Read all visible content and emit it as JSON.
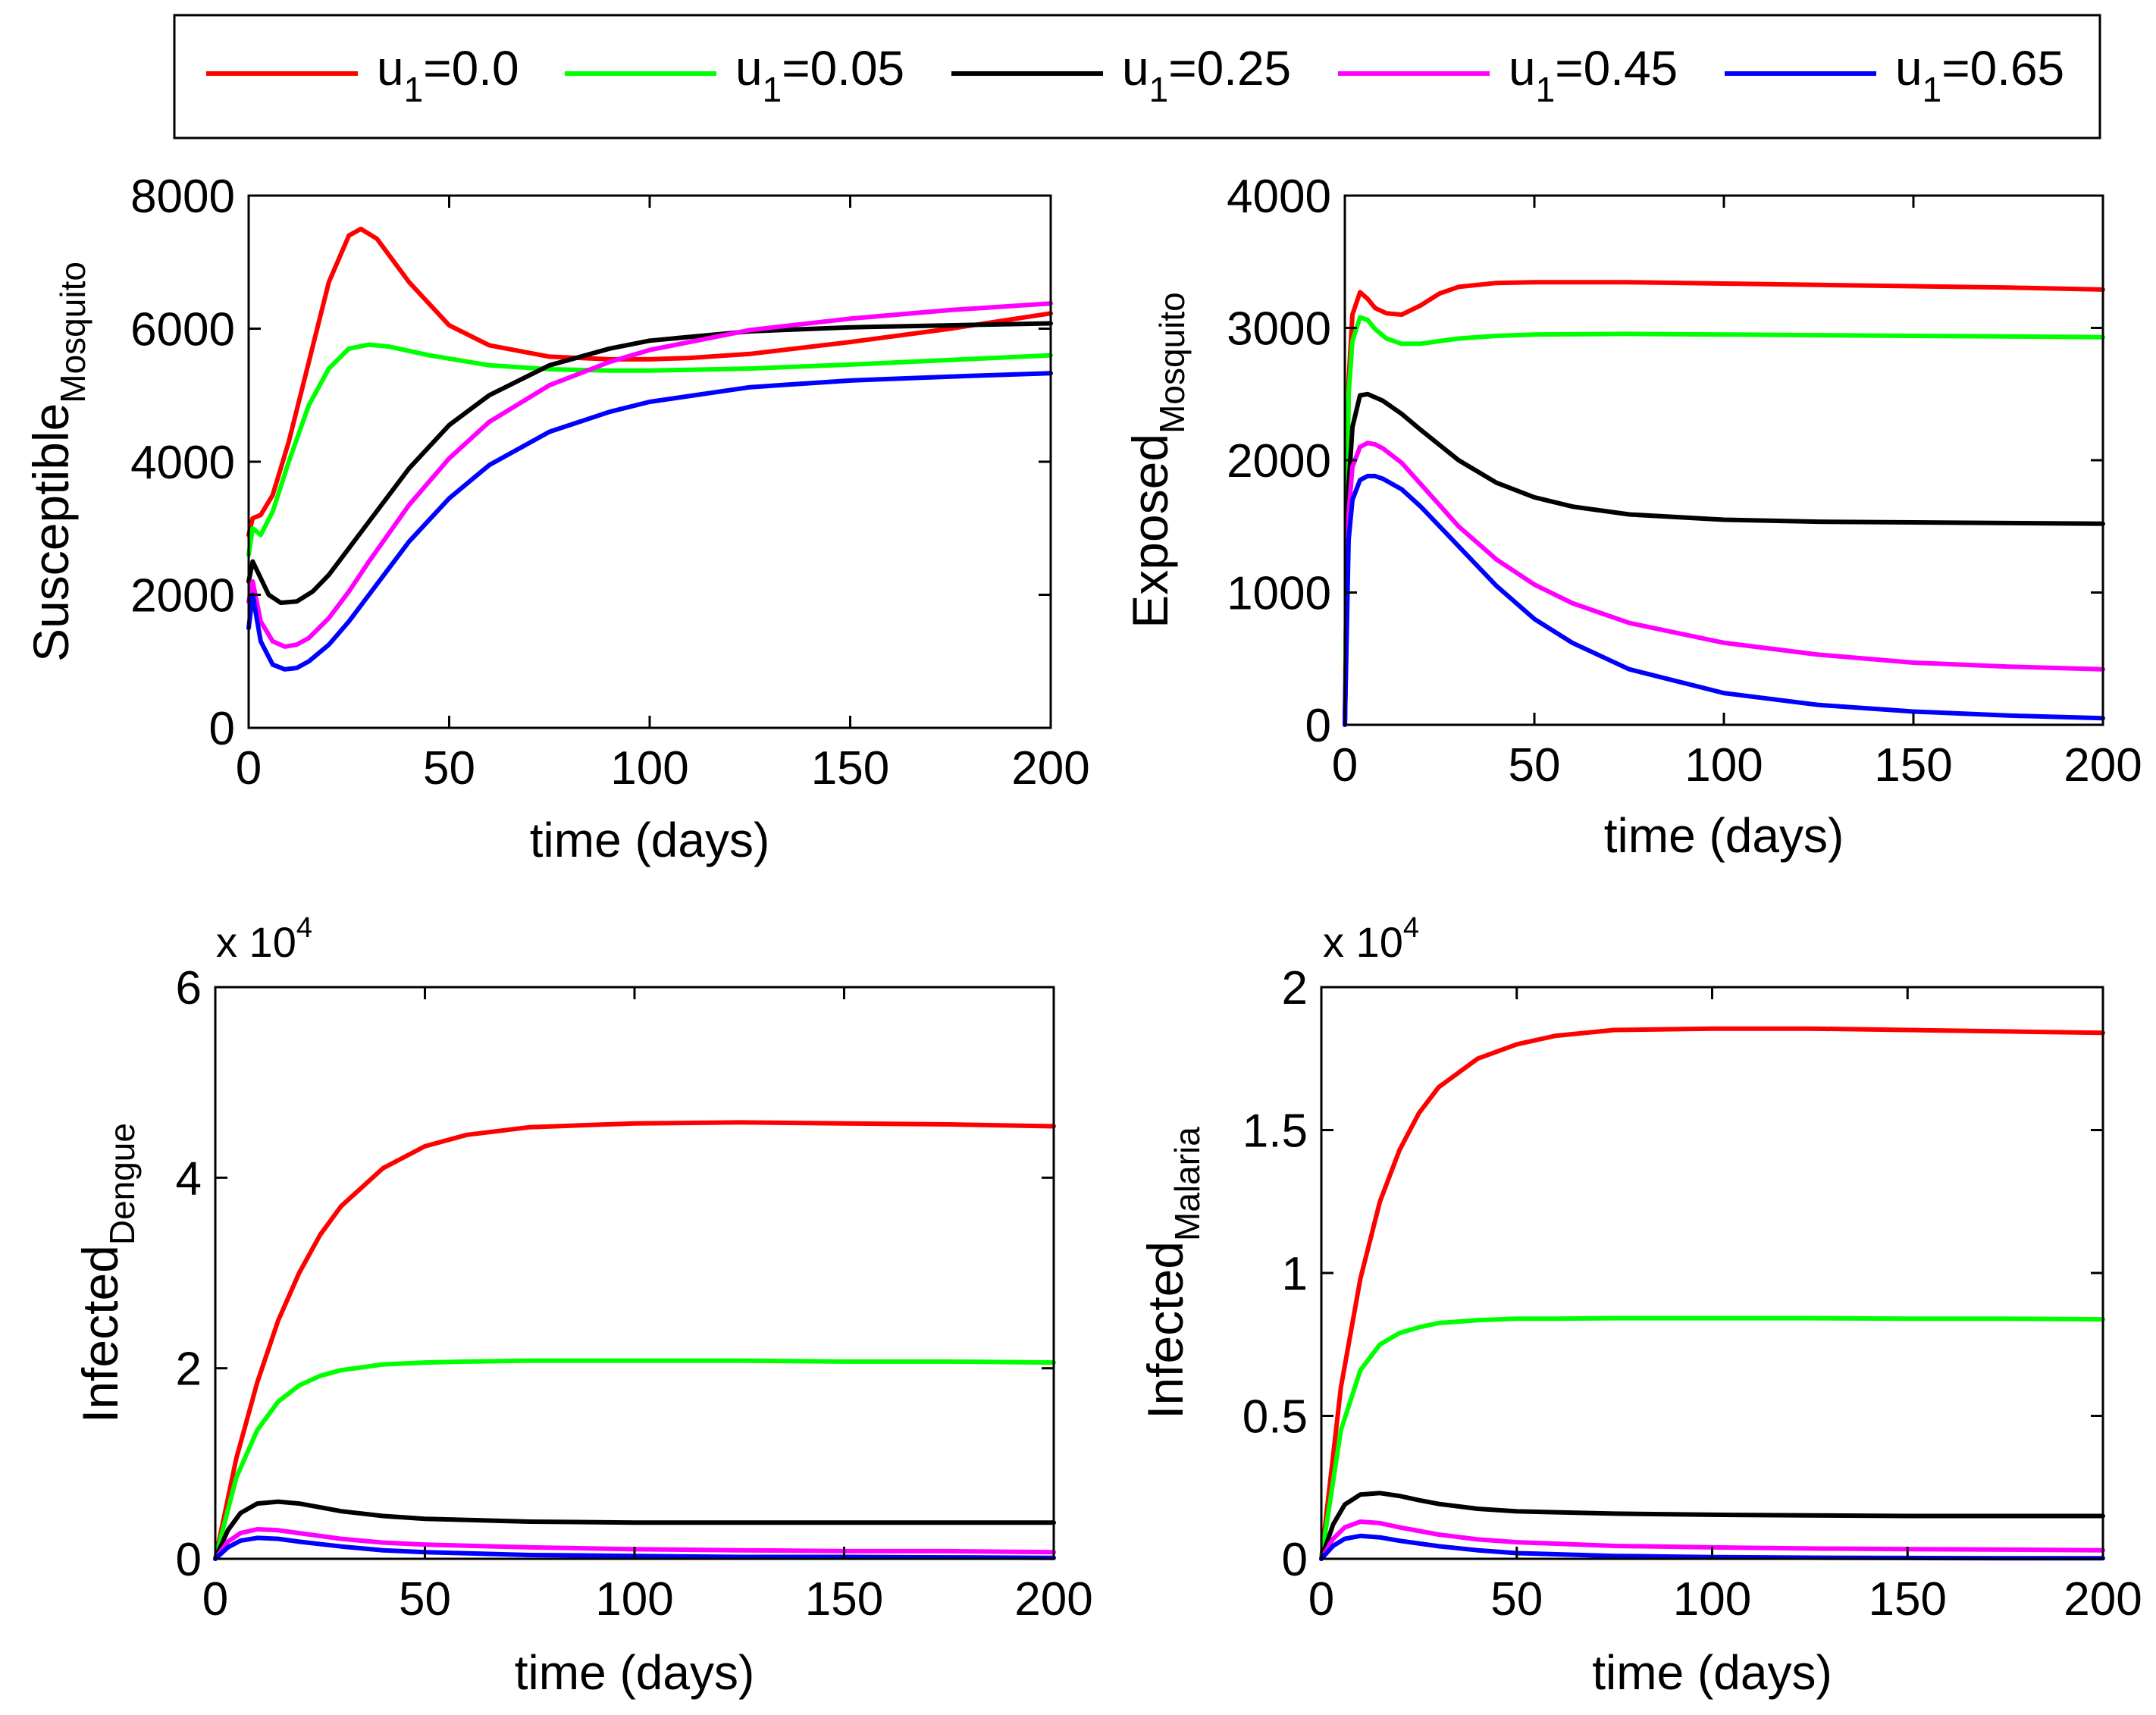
{
  "legend": {
    "entries": [
      {
        "base": "u",
        "sub": "1",
        "value": "=0.0",
        "color": "#ff0000"
      },
      {
        "base": "u",
        "sub": "1",
        "value": "=0.05",
        "color": "#00ff00"
      },
      {
        "base": "u",
        "sub": "1",
        "value": "=0.25",
        "color": "#000000"
      },
      {
        "base": "u",
        "sub": "1",
        "value": "=0.45",
        "color": "#ff00ff"
      },
      {
        "base": "u",
        "sub": "1",
        "value": "=0.65",
        "color": "#0000ff"
      }
    ]
  },
  "chart_data": [
    {
      "type": "line",
      "xlabel": "time (days)",
      "ylabel_main": "Susceptible",
      "ylabel_sub": "Mosquito",
      "multiplier_base": "",
      "multiplier_exp": "",
      "xlim": [
        0,
        200
      ],
      "ylim": [
        0,
        8000
      ],
      "xticks": [
        0,
        50,
        100,
        150,
        200
      ],
      "xtick_labels": [
        "0",
        "50",
        "100",
        "150",
        "200"
      ],
      "yticks": [
        0,
        2000,
        4000,
        6000,
        8000
      ],
      "ytick_labels": [
        "0",
        "2000",
        "4000",
        "6000",
        "8000"
      ],
      "series": [
        {
          "name": "u1=0.0",
          "color": "#ff0000",
          "x": [
            0,
            1,
            3,
            6,
            10,
            15,
            20,
            25,
            28,
            32,
            40,
            50,
            60,
            75,
            90,
            100,
            110,
            125,
            150,
            175,
            200
          ],
          "y": [
            2900,
            3150,
            3200,
            3500,
            4300,
            5500,
            6700,
            7400,
            7500,
            7350,
            6700,
            6050,
            5750,
            5580,
            5540,
            5540,
            5560,
            5620,
            5800,
            6000,
            6230
          ]
        },
        {
          "name": "u1=0.05",
          "color": "#00ff00",
          "x": [
            0,
            1,
            3,
            6,
            10,
            15,
            20,
            25,
            30,
            35,
            45,
            60,
            75,
            90,
            100,
            125,
            150,
            175,
            200
          ],
          "y": [
            2600,
            3000,
            2900,
            3250,
            4000,
            4850,
            5400,
            5700,
            5760,
            5730,
            5600,
            5450,
            5390,
            5370,
            5370,
            5400,
            5460,
            5530,
            5600
          ]
        },
        {
          "name": "u1=0.25",
          "color": "#000000",
          "x": [
            0,
            1,
            3,
            5,
            8,
            12,
            16,
            20,
            25,
            30,
            40,
            50,
            60,
            75,
            90,
            100,
            125,
            150,
            175,
            200
          ],
          "y": [
            2200,
            2500,
            2250,
            2000,
            1880,
            1900,
            2050,
            2300,
            2700,
            3100,
            3900,
            4550,
            5000,
            5450,
            5700,
            5820,
            5960,
            6020,
            6050,
            6080
          ]
        },
        {
          "name": "u1=0.45",
          "color": "#ff00ff",
          "x": [
            0,
            1,
            3,
            6,
            9,
            12,
            15,
            20,
            25,
            30,
            40,
            50,
            60,
            75,
            90,
            100,
            125,
            150,
            175,
            200
          ],
          "y": [
            1900,
            2200,
            1600,
            1300,
            1220,
            1250,
            1350,
            1650,
            2050,
            2500,
            3350,
            4050,
            4600,
            5150,
            5500,
            5680,
            5980,
            6150,
            6280,
            6380
          ]
        },
        {
          "name": "u1=0.65",
          "color": "#0000ff",
          "x": [
            0,
            1,
            3,
            6,
            9,
            12,
            15,
            20,
            25,
            30,
            40,
            50,
            60,
            75,
            90,
            100,
            125,
            150,
            175,
            200
          ],
          "y": [
            1500,
            2000,
            1300,
            950,
            880,
            900,
            1000,
            1250,
            1600,
            2000,
            2800,
            3450,
            3950,
            4450,
            4750,
            4900,
            5120,
            5220,
            5280,
            5330
          ]
        }
      ]
    },
    {
      "type": "line",
      "xlabel": "time (days)",
      "ylabel_main": "Exposed",
      "ylabel_sub": "Mosquito",
      "multiplier_base": "",
      "multiplier_exp": "",
      "xlim": [
        0,
        200
      ],
      "ylim": [
        0,
        4000
      ],
      "xticks": [
        0,
        50,
        100,
        150,
        200
      ],
      "xtick_labels": [
        "0",
        "50",
        "100",
        "150",
        "200"
      ],
      "yticks": [
        0,
        1000,
        2000,
        3000,
        4000
      ],
      "ytick_labels": [
        "0",
        "1000",
        "2000",
        "3000",
        "4000"
      ],
      "series": [
        {
          "name": "u1=0.0",
          "color": "#ff0000",
          "x": [
            0,
            1,
            2,
            4,
            6,
            8,
            11,
            15,
            20,
            25,
            30,
            40,
            50,
            75,
            100,
            125,
            150,
            175,
            200
          ],
          "y": [
            0,
            2600,
            3100,
            3270,
            3220,
            3150,
            3110,
            3100,
            3170,
            3260,
            3310,
            3340,
            3345,
            3345,
            3335,
            3325,
            3315,
            3305,
            3290
          ]
        },
        {
          "name": "u1=0.05",
          "color": "#00ff00",
          "x": [
            0,
            1,
            2,
            4,
            6,
            8,
            11,
            15,
            20,
            25,
            30,
            40,
            50,
            75,
            100,
            125,
            150,
            175,
            200
          ],
          "y": [
            0,
            2500,
            2900,
            3080,
            3060,
            2990,
            2920,
            2880,
            2880,
            2900,
            2920,
            2940,
            2950,
            2955,
            2950,
            2945,
            2940,
            2935,
            2930
          ]
        },
        {
          "name": "u1=0.25",
          "color": "#000000",
          "x": [
            0,
            1,
            2,
            4,
            6,
            10,
            15,
            20,
            30,
            40,
            50,
            60,
            75,
            100,
            125,
            150,
            175,
            200
          ],
          "y": [
            0,
            1800,
            2250,
            2490,
            2500,
            2450,
            2350,
            2230,
            2000,
            1830,
            1720,
            1650,
            1590,
            1550,
            1535,
            1530,
            1525,
            1520
          ]
        },
        {
          "name": "u1=0.45",
          "color": "#ff00ff",
          "x": [
            0,
            1,
            2,
            4,
            6,
            8,
            10,
            15,
            20,
            30,
            40,
            50,
            60,
            75,
            100,
            125,
            150,
            175,
            200
          ],
          "y": [
            0,
            1600,
            1950,
            2100,
            2130,
            2120,
            2090,
            1980,
            1820,
            1500,
            1250,
            1060,
            920,
            770,
            620,
            530,
            470,
            440,
            420
          ]
        },
        {
          "name": "u1=0.65",
          "color": "#0000ff",
          "x": [
            0,
            1,
            2,
            4,
            6,
            8,
            10,
            15,
            20,
            30,
            40,
            50,
            60,
            75,
            100,
            125,
            150,
            175,
            200
          ],
          "y": [
            0,
            1400,
            1700,
            1850,
            1880,
            1880,
            1860,
            1780,
            1650,
            1350,
            1050,
            800,
            620,
            420,
            240,
            150,
            100,
            70,
            50
          ]
        }
      ]
    },
    {
      "type": "line",
      "xlabel": "time (days)",
      "ylabel_main": "Infected",
      "ylabel_sub": "Dengue",
      "multiplier_base": "x 10",
      "multiplier_exp": "4",
      "xlim": [
        0,
        200
      ],
      "ylim": [
        0,
        6
      ],
      "xticks": [
        0,
        50,
        100,
        150,
        200
      ],
      "xtick_labels": [
        "0",
        "50",
        "100",
        "150",
        "200"
      ],
      "yticks": [
        0,
        2,
        4,
        6
      ],
      "ytick_labels": [
        "0",
        "2",
        "4",
        "6"
      ],
      "series": [
        {
          "name": "u1=0.0",
          "color": "#ff0000",
          "x": [
            0,
            5,
            10,
            15,
            20,
            25,
            30,
            40,
            50,
            60,
            75,
            100,
            125,
            150,
            175,
            200
          ],
          "y": [
            0,
            1.05,
            1.85,
            2.5,
            3.0,
            3.4,
            3.7,
            4.1,
            4.33,
            4.45,
            4.53,
            4.57,
            4.58,
            4.57,
            4.56,
            4.54
          ]
        },
        {
          "name": "u1=0.05",
          "color": "#00ff00",
          "x": [
            0,
            5,
            10,
            15,
            20,
            25,
            30,
            40,
            50,
            60,
            75,
            100,
            125,
            150,
            175,
            200
          ],
          "y": [
            0,
            0.85,
            1.35,
            1.65,
            1.82,
            1.92,
            1.98,
            2.04,
            2.06,
            2.07,
            2.08,
            2.08,
            2.08,
            2.07,
            2.07,
            2.06
          ]
        },
        {
          "name": "u1=0.25",
          "color": "#000000",
          "x": [
            0,
            3,
            6,
            10,
            15,
            20,
            25,
            30,
            40,
            50,
            75,
            100,
            125,
            150,
            175,
            200
          ],
          "y": [
            0,
            0.3,
            0.48,
            0.58,
            0.6,
            0.58,
            0.54,
            0.5,
            0.45,
            0.42,
            0.39,
            0.38,
            0.38,
            0.38,
            0.38,
            0.38
          ]
        },
        {
          "name": "u1=0.45",
          "color": "#ff00ff",
          "x": [
            0,
            3,
            6,
            10,
            15,
            20,
            30,
            40,
            50,
            75,
            100,
            125,
            150,
            175,
            200
          ],
          "y": [
            0,
            0.18,
            0.27,
            0.31,
            0.3,
            0.27,
            0.21,
            0.17,
            0.15,
            0.12,
            0.1,
            0.09,
            0.08,
            0.08,
            0.07
          ]
        },
        {
          "name": "u1=0.65",
          "color": "#0000ff",
          "x": [
            0,
            3,
            6,
            10,
            15,
            20,
            30,
            40,
            50,
            75,
            100,
            125,
            150,
            175,
            200
          ],
          "y": [
            0,
            0.12,
            0.19,
            0.22,
            0.21,
            0.18,
            0.13,
            0.09,
            0.07,
            0.04,
            0.03,
            0.02,
            0.02,
            0.015,
            0.01
          ]
        }
      ]
    },
    {
      "type": "line",
      "xlabel": "time (days)",
      "ylabel_main": "Infected",
      "ylabel_sub": "Malaria",
      "multiplier_base": "x 10",
      "multiplier_exp": "4",
      "xlim": [
        0,
        200
      ],
      "ylim": [
        0,
        2
      ],
      "xticks": [
        0,
        50,
        100,
        150,
        200
      ],
      "xtick_labels": [
        "0",
        "50",
        "100",
        "150",
        "200"
      ],
      "yticks": [
        0,
        0.5,
        1,
        1.5,
        2
      ],
      "ytick_labels": [
        "0",
        "0.5",
        "1",
        "1.5",
        "2"
      ],
      "series": [
        {
          "name": "u1=0.0",
          "color": "#ff0000",
          "x": [
            0,
            5,
            10,
            15,
            20,
            25,
            30,
            40,
            50,
            60,
            75,
            100,
            125,
            150,
            175,
            200
          ],
          "y": [
            0,
            0.6,
            0.98,
            1.25,
            1.43,
            1.56,
            1.65,
            1.75,
            1.8,
            1.83,
            1.85,
            1.855,
            1.855,
            1.85,
            1.845,
            1.84
          ]
        },
        {
          "name": "u1=0.05",
          "color": "#00ff00",
          "x": [
            0,
            5,
            10,
            15,
            20,
            25,
            30,
            40,
            50,
            60,
            75,
            100,
            125,
            150,
            175,
            200
          ],
          "y": [
            0,
            0.45,
            0.66,
            0.75,
            0.79,
            0.81,
            0.825,
            0.835,
            0.84,
            0.84,
            0.842,
            0.842,
            0.842,
            0.84,
            0.84,
            0.838
          ]
        },
        {
          "name": "u1=0.25",
          "color": "#000000",
          "x": [
            0,
            3,
            6,
            10,
            15,
            20,
            25,
            30,
            40,
            50,
            75,
            100,
            125,
            150,
            175,
            200
          ],
          "y": [
            0,
            0.12,
            0.19,
            0.225,
            0.23,
            0.22,
            0.205,
            0.192,
            0.175,
            0.166,
            0.158,
            0.154,
            0.152,
            0.15,
            0.15,
            0.15
          ]
        },
        {
          "name": "u1=0.45",
          "color": "#ff00ff",
          "x": [
            0,
            3,
            6,
            10,
            15,
            20,
            30,
            40,
            50,
            75,
            100,
            125,
            150,
            175,
            200
          ],
          "y": [
            0,
            0.07,
            0.11,
            0.13,
            0.125,
            0.11,
            0.085,
            0.068,
            0.058,
            0.045,
            0.04,
            0.036,
            0.034,
            0.032,
            0.03
          ]
        },
        {
          "name": "u1=0.65",
          "color": "#0000ff",
          "x": [
            0,
            3,
            6,
            10,
            15,
            20,
            30,
            40,
            50,
            75,
            100,
            125,
            150,
            175,
            200
          ],
          "y": [
            0,
            0.045,
            0.07,
            0.08,
            0.075,
            0.063,
            0.044,
            0.03,
            0.02,
            0.01,
            0.006,
            0.004,
            0.003,
            0.002,
            0.002
          ]
        }
      ]
    }
  ]
}
